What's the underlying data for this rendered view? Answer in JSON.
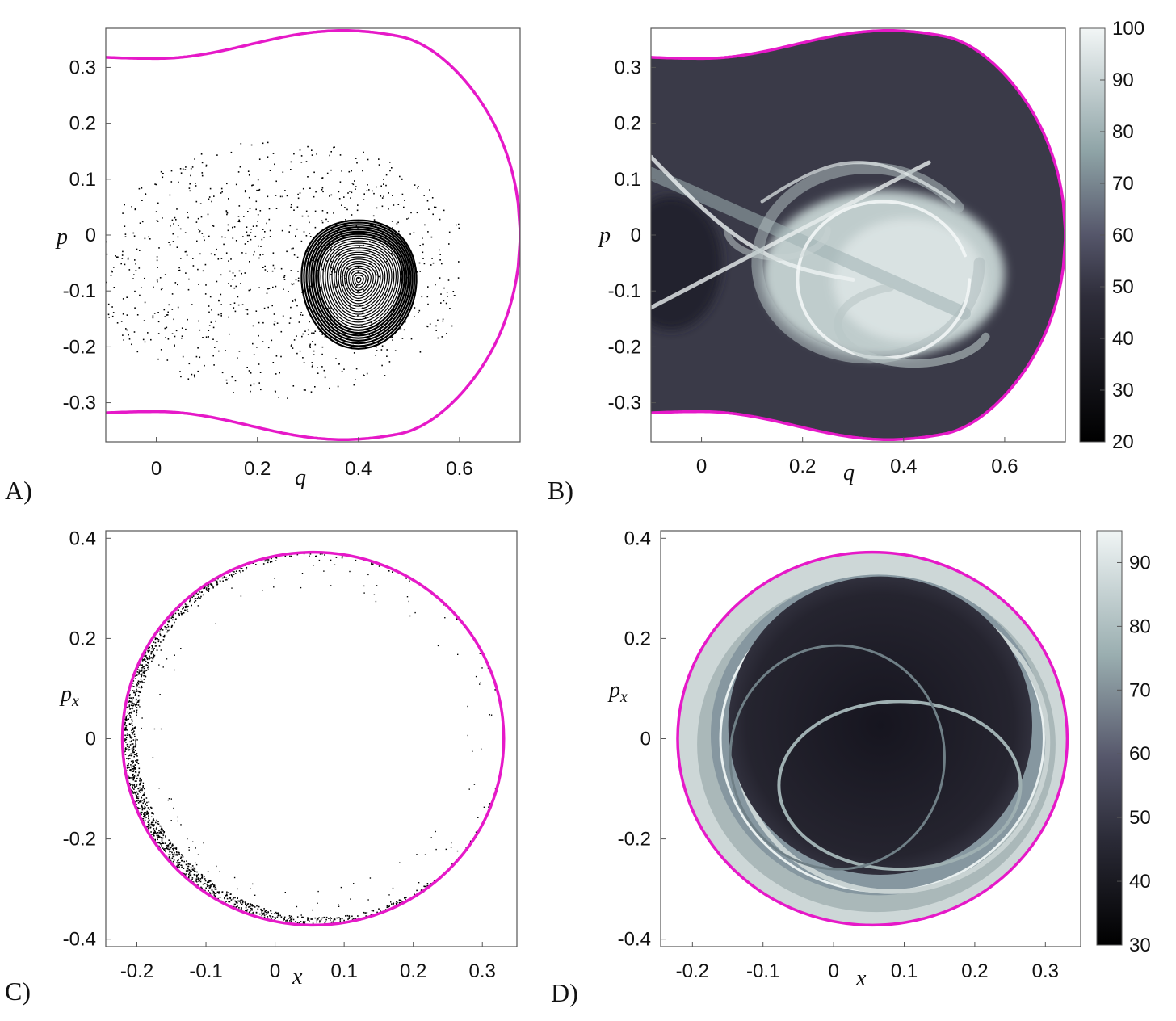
{
  "colors": {
    "boundary": "#e619c8",
    "points": "#000000",
    "frame": "#555555"
  },
  "chart_data": [
    {
      "panel": "A)",
      "type": "scatter",
      "xlabel": "q",
      "ylabel": "p",
      "xlim": [
        -0.1,
        0.72
      ],
      "ylim": [
        -0.37,
        0.37
      ],
      "xticks": [
        "0",
        "0.2",
        "0.4",
        "0.6"
      ],
      "xtick_values": [
        0,
        0.2,
        0.4,
        0.6
      ],
      "yticks": [
        "0.3",
        "0.2",
        "0.1",
        "0",
        "-0.1",
        "-0.2",
        "-0.3"
      ],
      "ytick_values": [
        0.3,
        0.2,
        0.1,
        0,
        -0.1,
        -0.2,
        -0.3
      ],
      "island_center": [
        0.4,
        -0.08
      ],
      "grid": false
    },
    {
      "panel": "B)",
      "type": "heatmap",
      "xlabel": "q",
      "ylabel": "p",
      "xlim": [
        -0.1,
        0.72
      ],
      "ylim": [
        -0.37,
        0.37
      ],
      "xticks": [
        "0",
        "0.2",
        "0.4",
        "0.6"
      ],
      "xtick_values": [
        0,
        0.2,
        0.4,
        0.6
      ],
      "yticks": [
        "0.3",
        "0.2",
        "0.1",
        "0",
        "-0.1",
        "-0.2",
        "-0.3"
      ],
      "ytick_values": [
        0.3,
        0.2,
        0.1,
        0,
        -0.1,
        -0.2,
        -0.3
      ],
      "colorbar": {
        "range": [
          20,
          100
        ],
        "ticks": [
          "100",
          "90",
          "80",
          "70",
          "60",
          "50",
          "40",
          "30",
          "20"
        ],
        "tick_values": [
          100,
          90,
          80,
          70,
          60,
          50,
          40,
          30,
          20
        ]
      },
      "grid": false
    },
    {
      "panel": "C)",
      "type": "scatter",
      "xlabel": "x",
      "ylabel": "p_x",
      "xlim": [
        -0.245,
        0.35
      ],
      "ylim": [
        -0.415,
        0.415
      ],
      "xticks": [
        "-0.2",
        "-0.1",
        "0",
        "0.1",
        "0.2",
        "0.3"
      ],
      "xtick_values": [
        -0.2,
        -0.1,
        0,
        0.1,
        0.2,
        0.3
      ],
      "yticks": [
        "0.4",
        "0.2",
        "0",
        "-0.2",
        "-0.4"
      ],
      "ytick_values": [
        0.4,
        0.2,
        0,
        -0.2,
        -0.4
      ],
      "boundary_circle": {
        "center": [
          0.055,
          0.0
        ],
        "rx": 0.276,
        "ry": 0.372
      },
      "grid": false
    },
    {
      "panel": "D)",
      "type": "heatmap",
      "xlabel": "x",
      "ylabel": "p_x",
      "xlim": [
        -0.245,
        0.35
      ],
      "ylim": [
        -0.415,
        0.415
      ],
      "xticks": [
        "-0.2",
        "-0.1",
        "0",
        "0.1",
        "0.2",
        "0.3"
      ],
      "xtick_values": [
        -0.2,
        -0.1,
        0,
        0.1,
        0.2,
        0.3
      ],
      "yticks": [
        "0.4",
        "0.2",
        "0",
        "-0.2",
        "-0.4"
      ],
      "ytick_values": [
        0.4,
        0.2,
        0,
        -0.2,
        -0.4
      ],
      "boundary_circle": {
        "center": [
          0.055,
          0.0
        ],
        "rx": 0.276,
        "ry": 0.372
      },
      "colorbar": {
        "range": [
          30,
          95
        ],
        "ticks": [
          "90",
          "80",
          "70",
          "60",
          "50",
          "40",
          "30"
        ],
        "tick_values": [
          90,
          80,
          70,
          60,
          50,
          40,
          30
        ]
      },
      "grid": false
    }
  ]
}
